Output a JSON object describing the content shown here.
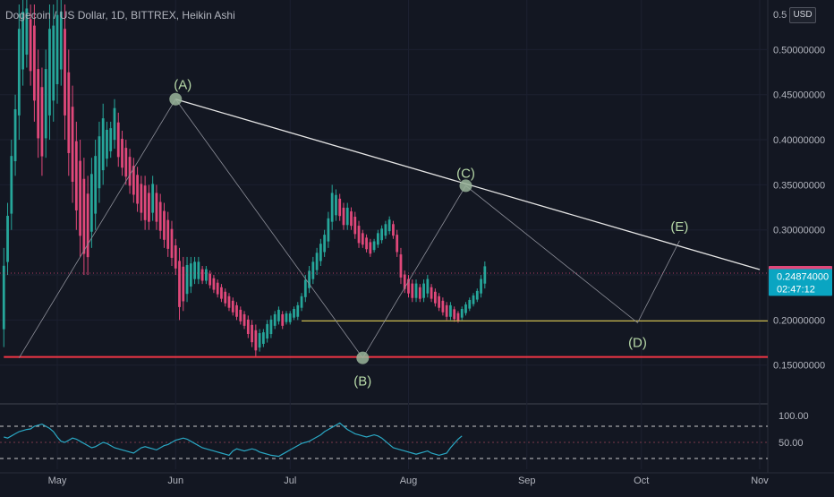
{
  "header": {
    "title": "Dogecoin / US Dollar, 1D, BITTREX, Heikin Ashi",
    "currency_button": "USD"
  },
  "price_axis": {
    "ticks": [
      "0.5",
      "0.50000000",
      "0.45000000",
      "0.40000000",
      "0.35000000",
      "0.30000000",
      "0.25000000",
      "0.20000000",
      "0.15000000"
    ],
    "top_tick_label": "0.5",
    "badge_last": "0.25201000",
    "badge_current": "0.24874000",
    "badge_countdown": "02:47:12"
  },
  "indicator_axis": {
    "ticks": [
      "100.00",
      "50.00"
    ]
  },
  "time_axis": {
    "ticks": [
      "May",
      "Jun",
      "Jul",
      "Aug",
      "Sep",
      "Oct",
      "Nov"
    ]
  },
  "annotations": {
    "wave_labels": [
      "(A)",
      "(B)",
      "(C)",
      "(D)",
      "(E)"
    ]
  },
  "colors": {
    "background": "#131722",
    "up_candle": "#26a69a",
    "down_candle": "#e0487a",
    "resistance_line": "#e6e6e6",
    "support_red": "#f23645",
    "support_yellow": "#c8b84a",
    "rsi_line": "#2aa8c4",
    "wave_point": "#9ab59a"
  },
  "chart_data": [
    {
      "type": "candlestick",
      "title": "Dogecoin / US Dollar, 1D, BITTREX, Heikin Ashi",
      "ylim": [
        0.11,
        0.555
      ],
      "x_range": [
        "2021-04-16",
        "2021-11-01"
      ],
      "y_ticks": [
        0.15,
        0.2,
        0.25,
        0.3,
        0.35,
        0.4,
        0.45,
        0.5
      ],
      "key_points": [
        {
          "label": "(A)",
          "date": "2021-06-01",
          "price": 0.445
        },
        {
          "label": "(B)",
          "date": "2021-07-20",
          "price": 0.158
        },
        {
          "label": "(C)",
          "date": "2021-08-16",
          "price": 0.349
        },
        {
          "label": "(D)",
          "date": "2021-09-30",
          "price": 0.197
        },
        {
          "label": "(E)",
          "date": "2021-10-11",
          "price": 0.288
        }
      ],
      "zigzag": [
        {
          "date": "2021-04-21",
          "price": 0.158
        },
        {
          "date": "2021-06-01",
          "price": 0.445
        },
        {
          "date": "2021-07-20",
          "price": 0.158
        },
        {
          "date": "2021-08-16",
          "price": 0.349
        },
        {
          "date": "2021-09-30",
          "price": 0.197
        },
        {
          "date": "2021-10-11",
          "price": 0.288
        }
      ],
      "trendlines": [
        {
          "kind": "resistance",
          "from": {
            "date": "2021-06-01",
            "price": 0.445
          },
          "to": {
            "date": "2021-11-01",
            "price": 0.256
          }
        },
        {
          "kind": "support",
          "price": 0.159,
          "from_date": "2021-04-17",
          "to_date": "2021-11-01"
        },
        {
          "kind": "support",
          "price": 0.199,
          "from_date": "2021-07-04",
          "to_date": "2021-11-01"
        }
      ],
      "last_price": 0.25201,
      "current_price": 0.24874,
      "candles": [
        [
          0.17,
          0.28
        ],
        [
          0.25,
          0.33
        ],
        [
          0.3,
          0.4
        ],
        [
          0.36,
          0.45
        ],
        [
          0.4,
          0.55
        ],
        [
          0.46,
          0.56
        ],
        [
          0.48,
          0.56
        ],
        [
          0.46,
          0.55
        ],
        [
          0.42,
          0.55
        ],
        [
          0.38,
          0.5
        ],
        [
          0.36,
          0.48
        ],
        [
          0.38,
          0.5
        ],
        [
          0.4,
          0.55
        ],
        [
          0.42,
          0.55
        ],
        [
          0.44,
          0.56
        ],
        [
          0.46,
          0.56
        ],
        [
          0.4,
          0.55
        ],
        [
          0.36,
          0.5
        ],
        [
          0.33,
          0.46
        ],
        [
          0.3,
          0.42
        ],
        [
          0.27,
          0.4
        ],
        [
          0.25,
          0.38
        ],
        [
          0.25,
          0.36
        ],
        [
          0.28,
          0.38
        ],
        [
          0.3,
          0.4
        ],
        [
          0.33,
          0.42
        ],
        [
          0.35,
          0.44
        ],
        [
          0.37,
          0.42
        ],
        [
          0.38,
          0.42
        ],
        [
          0.39,
          0.445
        ],
        [
          0.37,
          0.43
        ],
        [
          0.36,
          0.41
        ],
        [
          0.35,
          0.4
        ],
        [
          0.34,
          0.39
        ],
        [
          0.33,
          0.38
        ],
        [
          0.32,
          0.37
        ],
        [
          0.31,
          0.36
        ],
        [
          0.3,
          0.36
        ],
        [
          0.3,
          0.35
        ],
        [
          0.31,
          0.36
        ],
        [
          0.3,
          0.35
        ],
        [
          0.29,
          0.34
        ],
        [
          0.28,
          0.33
        ],
        [
          0.27,
          0.32
        ],
        [
          0.26,
          0.31
        ],
        [
          0.25,
          0.29
        ],
        [
          0.2,
          0.28
        ],
        [
          0.21,
          0.27
        ],
        [
          0.22,
          0.27
        ],
        [
          0.23,
          0.27
        ],
        [
          0.24,
          0.27
        ],
        [
          0.24,
          0.27
        ],
        [
          0.24,
          0.26
        ],
        [
          0.24,
          0.26
        ],
        [
          0.235,
          0.255
        ],
        [
          0.23,
          0.25
        ],
        [
          0.225,
          0.245
        ],
        [
          0.22,
          0.24
        ],
        [
          0.215,
          0.235
        ],
        [
          0.21,
          0.23
        ],
        [
          0.205,
          0.225
        ],
        [
          0.2,
          0.22
        ],
        [
          0.195,
          0.215
        ],
        [
          0.19,
          0.21
        ],
        [
          0.18,
          0.205
        ],
        [
          0.17,
          0.2
        ],
        [
          0.16,
          0.195
        ],
        [
          0.165,
          0.19
        ],
        [
          0.17,
          0.19
        ],
        [
          0.175,
          0.2
        ],
        [
          0.18,
          0.205
        ],
        [
          0.19,
          0.21
        ],
        [
          0.195,
          0.215
        ],
        [
          0.19,
          0.21
        ],
        [
          0.195,
          0.21
        ],
        [
          0.195,
          0.21
        ],
        [
          0.2,
          0.215
        ],
        [
          0.2,
          0.22
        ],
        [
          0.21,
          0.23
        ],
        [
          0.22,
          0.25
        ],
        [
          0.23,
          0.26
        ],
        [
          0.24,
          0.27
        ],
        [
          0.25,
          0.28
        ],
        [
          0.26,
          0.29
        ],
        [
          0.27,
          0.3
        ],
        [
          0.28,
          0.32
        ],
        [
          0.3,
          0.35
        ],
        [
          0.31,
          0.345
        ],
        [
          0.31,
          0.34
        ],
        [
          0.3,
          0.33
        ],
        [
          0.3,
          0.33
        ],
        [
          0.3,
          0.325
        ],
        [
          0.29,
          0.32
        ],
        [
          0.28,
          0.31
        ],
        [
          0.28,
          0.3
        ],
        [
          0.275,
          0.295
        ],
        [
          0.27,
          0.29
        ],
        [
          0.275,
          0.29
        ],
        [
          0.28,
          0.3
        ],
        [
          0.285,
          0.305
        ],
        [
          0.29,
          0.31
        ],
        [
          0.295,
          0.315
        ],
        [
          0.29,
          0.31
        ],
        [
          0.27,
          0.3
        ],
        [
          0.24,
          0.28
        ],
        [
          0.23,
          0.255
        ],
        [
          0.225,
          0.25
        ],
        [
          0.22,
          0.245
        ],
        [
          0.22,
          0.245
        ],
        [
          0.22,
          0.24
        ],
        [
          0.22,
          0.245
        ],
        [
          0.225,
          0.25
        ],
        [
          0.22,
          0.24
        ],
        [
          0.215,
          0.235
        ],
        [
          0.21,
          0.23
        ],
        [
          0.205,
          0.225
        ],
        [
          0.2,
          0.22
        ],
        [
          0.2,
          0.22
        ],
        [
          0.198,
          0.215
        ],
        [
          0.197,
          0.21
        ],
        [
          0.2,
          0.215
        ],
        [
          0.205,
          0.22
        ],
        [
          0.21,
          0.225
        ],
        [
          0.215,
          0.23
        ],
        [
          0.22,
          0.235
        ],
        [
          0.225,
          0.25
        ],
        [
          0.235,
          0.265
        ]
      ]
    },
    {
      "type": "line",
      "ylim": [
        0,
        115
      ],
      "y_ticks": [
        50,
        100
      ],
      "levels": [
        20,
        50,
        80
      ],
      "series": [
        {
          "values": [
            60,
            58,
            62,
            66,
            70,
            72,
            74,
            75,
            80,
            82,
            84,
            80,
            76,
            70,
            60,
            52,
            50,
            54,
            58,
            56,
            52,
            48,
            44,
            40,
            42,
            46,
            50,
            48,
            44,
            40,
            38,
            36,
            34,
            32,
            30,
            35,
            40,
            42,
            40,
            38,
            36,
            40,
            44,
            46,
            50,
            54,
            56,
            58,
            56,
            52,
            48,
            44,
            40,
            38,
            36,
            34,
            32,
            30,
            28,
            26,
            34,
            38,
            36,
            34,
            36,
            38,
            36,
            32,
            30,
            28,
            26,
            25,
            24,
            28,
            32,
            36,
            40,
            44,
            48,
            50,
            52,
            56,
            60,
            64,
            70,
            74,
            78,
            82,
            86,
            80,
            74,
            70,
            66,
            64,
            62,
            60,
            62,
            64,
            62,
            58,
            52,
            46,
            40,
            38,
            36,
            34,
            32,
            30,
            28,
            30,
            32,
            34,
            30,
            28,
            26,
            28,
            30,
            40,
            48,
            56,
            62
          ]
        }
      ]
    }
  ]
}
